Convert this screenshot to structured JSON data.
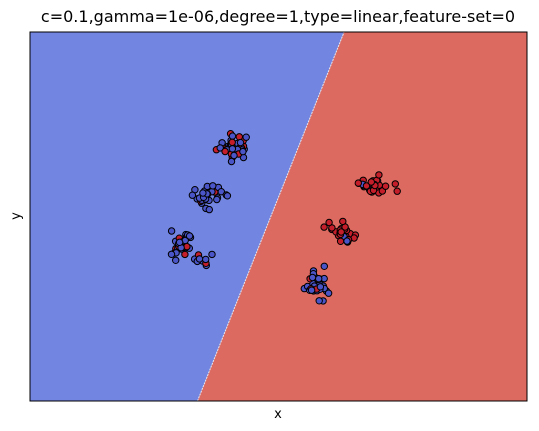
{
  "chart_data": {
    "type": "scatter",
    "title": "c=0.1,gamma=1e-06,degree=1,type=linear,feature-set=0",
    "xlabel": "x",
    "ylabel": "y",
    "xlim": [
      0,
      100
    ],
    "ylim": [
      0,
      100
    ],
    "grid": false,
    "ticks_visible": false,
    "colors": {
      "region_class0": "#7285e0",
      "region_class1": "#dc6a61",
      "point_class0": "#4a55c8",
      "point_class1": "#c41e2a",
      "point_edge": "#000000",
      "frame": "#000000"
    },
    "decision_boundary": [
      {
        "x": 33.7,
        "y": 0
      },
      {
        "x": 63.2,
        "y": 100
      }
    ],
    "clusters": [
      {
        "cx": 41.0,
        "cy": 69.0,
        "sx": 1.7,
        "sy": 1.7,
        "n": 38,
        "class1_fraction": 0.3
      },
      {
        "cx": 35.5,
        "cy": 55.5,
        "sx": 1.6,
        "sy": 1.6,
        "n": 28,
        "class1_fraction": 0.2
      },
      {
        "cx": 30.5,
        "cy": 42.0,
        "sx": 1.3,
        "sy": 1.6,
        "n": 30,
        "class1_fraction": 0.15
      },
      {
        "cx": 34.5,
        "cy": 38.0,
        "sx": 0.9,
        "sy": 0.9,
        "n": 8,
        "class1_fraction": 0.2
      },
      {
        "cx": 69.0,
        "cy": 58.5,
        "sx": 1.7,
        "sy": 1.5,
        "n": 36,
        "class1_fraction": 0.85
      },
      {
        "cx": 63.0,
        "cy": 45.5,
        "sx": 1.1,
        "sy": 1.4,
        "n": 26,
        "class1_fraction": 0.85
      },
      {
        "cx": 58.0,
        "cy": 31.5,
        "sx": 1.2,
        "sy": 1.8,
        "n": 34,
        "class1_fraction": 0.15
      }
    ]
  }
}
